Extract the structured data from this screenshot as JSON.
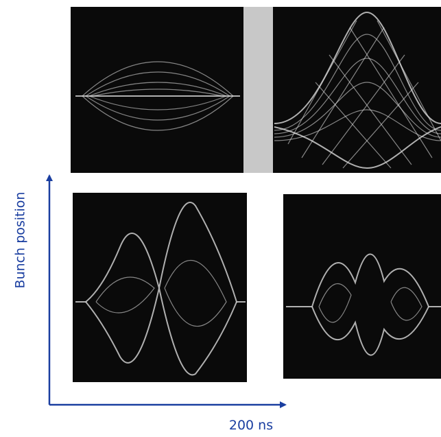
{
  "axes": {
    "y_label": "Bunch position",
    "x_label": "200 ns"
  }
}
